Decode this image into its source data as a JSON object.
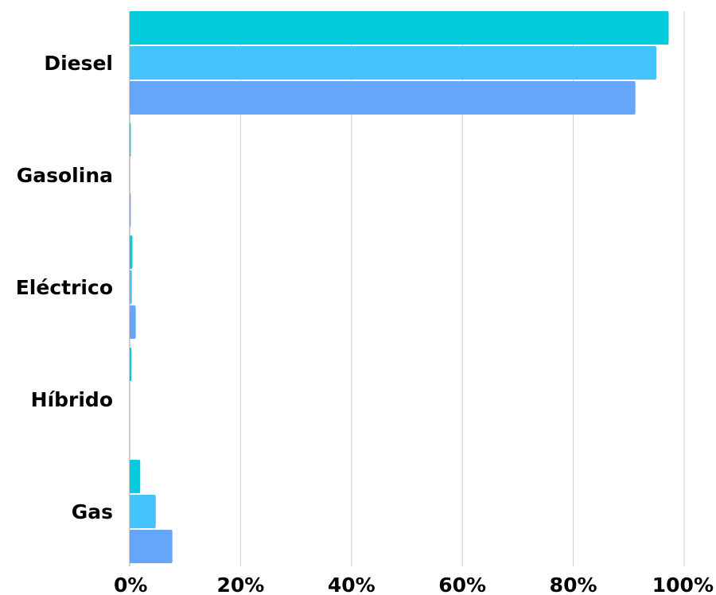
{
  "chart_data": {
    "type": "bar",
    "orientation": "horizontal",
    "categories": [
      "Diesel",
      "Gasolina",
      "Eléctrico",
      "Híbrido",
      "Gas"
    ],
    "series": [
      {
        "values": [
          97.2,
          0.2,
          0.5,
          0.3,
          1.9
        ],
        "color": "#00CCDD"
      },
      {
        "values": [
          95.0,
          0.1,
          0.4,
          0.0,
          4.7
        ],
        "color": "#44C4FF"
      },
      {
        "values": [
          91.2,
          0.2,
          1.1,
          0.0,
          7.7
        ],
        "color": "#66A6FA"
      }
    ],
    "xlim": [
      0,
      100
    ],
    "x_ticks": [
      0,
      20,
      40,
      60,
      80,
      100
    ],
    "x_tick_labels": [
      "0%",
      "20%",
      "40%",
      "60%",
      "80%",
      "100%"
    ],
    "grid": true,
    "legend": "none",
    "title": "",
    "xlabel": "",
    "ylabel": ""
  }
}
